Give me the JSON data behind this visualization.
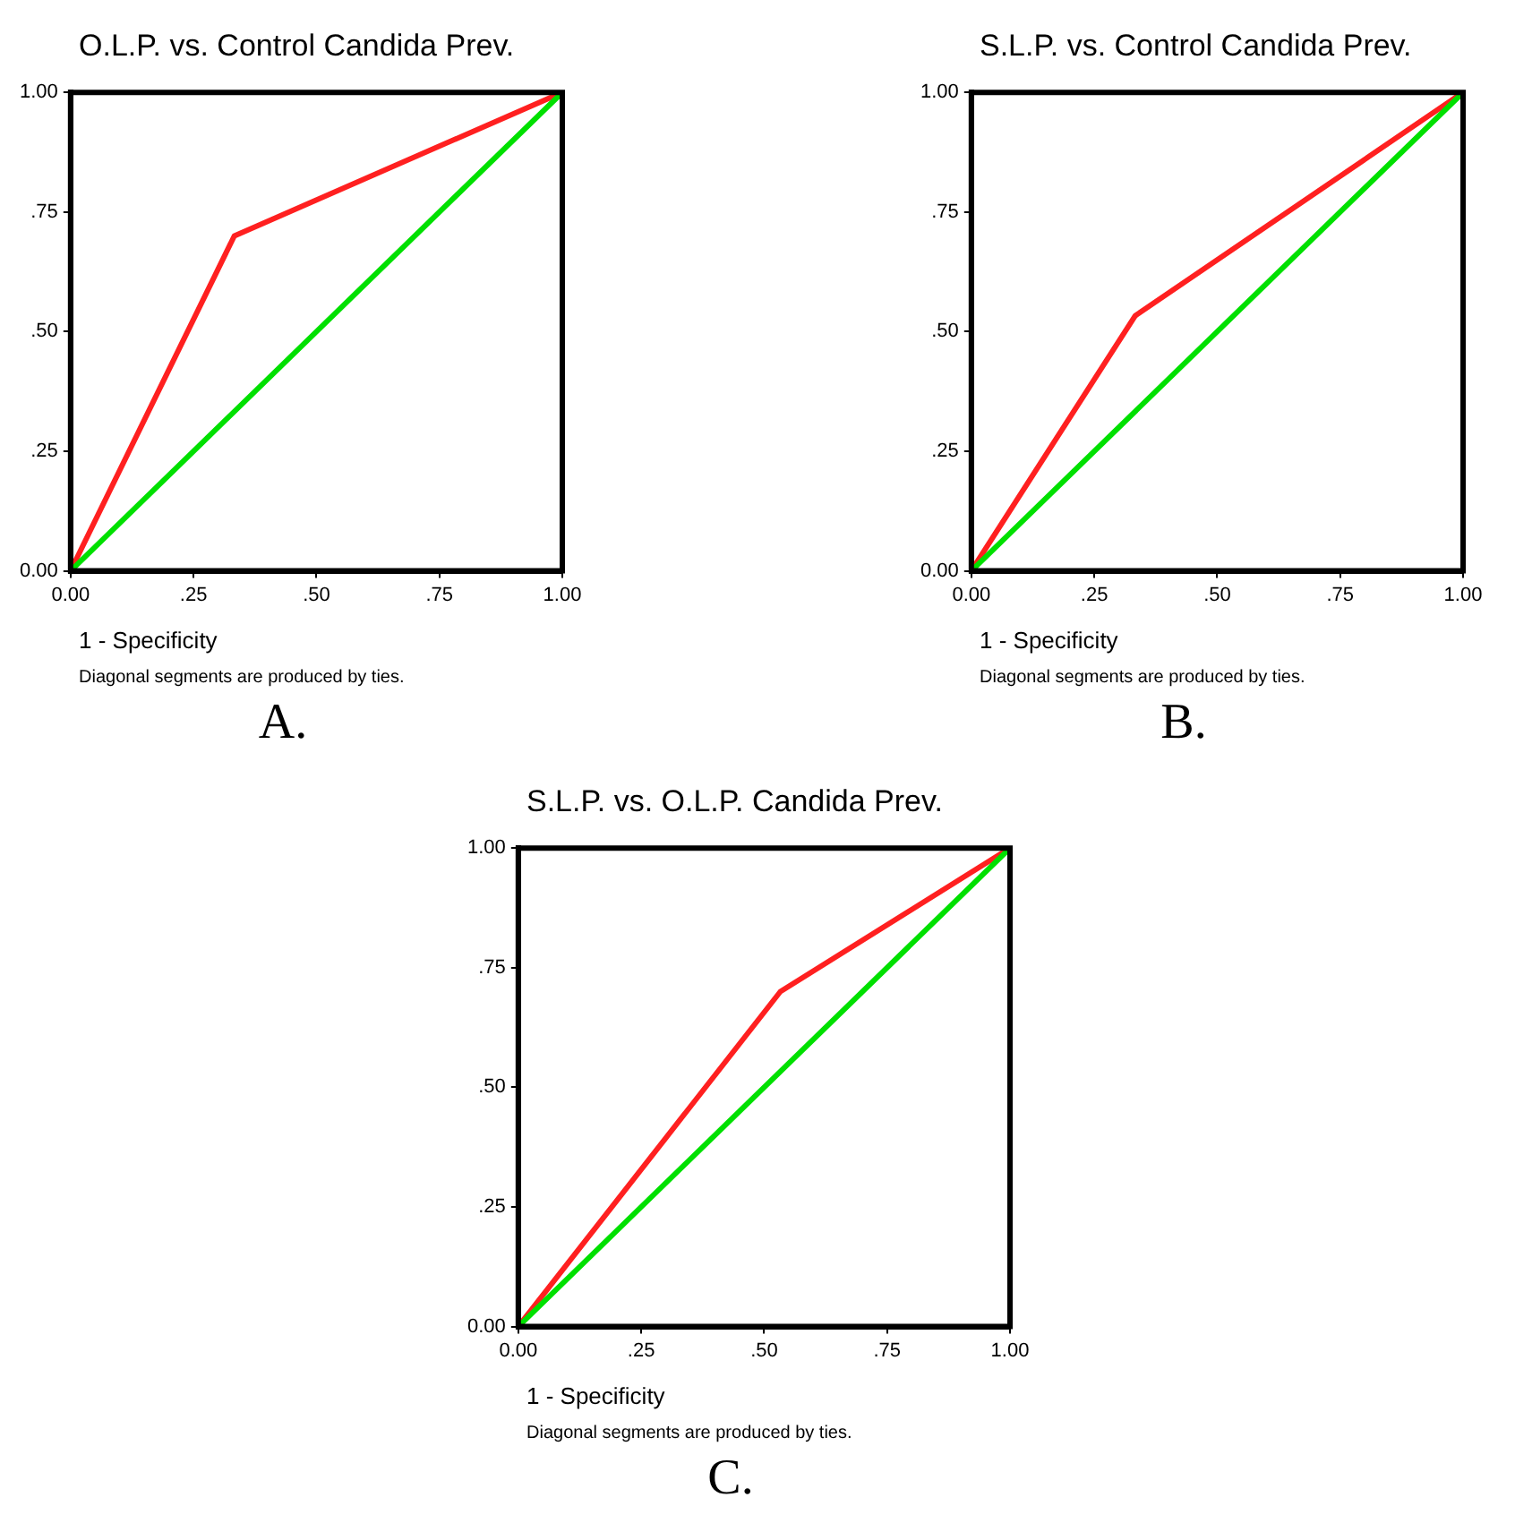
{
  "chart_data": [
    {
      "type": "line",
      "title": "O.L.P. vs. Control Candida Prev.",
      "xlabel": "1 - Specificity",
      "annotations": [
        "Diagonal segments are produced by ties.",
        "A."
      ],
      "xlim": [
        0,
        1
      ],
      "ylim": [
        0,
        1
      ],
      "xticks": [
        {
          "value": 0,
          "label": "0.00"
        },
        {
          "value": 0.25,
          "label": ".25"
        },
        {
          "value": 0.5,
          "label": ".50"
        },
        {
          "value": 0.75,
          "label": ".75"
        },
        {
          "value": 1,
          "label": "1.00"
        }
      ],
      "yticks": [
        {
          "value": 0,
          "label": "0.00"
        },
        {
          "value": 0.25,
          "label": ".25"
        },
        {
          "value": 0.5,
          "label": ".50"
        },
        {
          "value": 0.75,
          "label": ".75"
        },
        {
          "value": 1,
          "label": "1.00"
        }
      ],
      "grid": false,
      "legend": false,
      "marker": "none",
      "line_style": "solid",
      "series": [
        {
          "color": "#00e000",
          "x": [
            0,
            1
          ],
          "values": [
            0,
            1
          ]
        },
        {
          "color": "#ff2020",
          "x": [
            0,
            0.333,
            1
          ],
          "values": [
            0,
            0.7,
            1
          ]
        }
      ]
    },
    {
      "type": "line",
      "title": "S.L.P. vs. Control Candida Prev.",
      "xlabel": "1 - Specificity",
      "annotations": [
        "Diagonal segments are produced by ties.",
        "B."
      ],
      "xlim": [
        0,
        1
      ],
      "ylim": [
        0,
        1
      ],
      "xticks": [
        {
          "value": 0,
          "label": "0.00"
        },
        {
          "value": 0.25,
          "label": ".25"
        },
        {
          "value": 0.5,
          "label": ".50"
        },
        {
          "value": 0.75,
          "label": ".75"
        },
        {
          "value": 1,
          "label": "1.00"
        }
      ],
      "yticks": [
        {
          "value": 0,
          "label": "0.00"
        },
        {
          "value": 0.25,
          "label": ".25"
        },
        {
          "value": 0.5,
          "label": ".50"
        },
        {
          "value": 0.75,
          "label": ".75"
        },
        {
          "value": 1,
          "label": "1.00"
        }
      ],
      "grid": false,
      "legend": false,
      "marker": "none",
      "line_style": "solid",
      "series": [
        {
          "color": "#00e000",
          "x": [
            0,
            1
          ],
          "values": [
            0,
            1
          ]
        },
        {
          "color": "#ff2020",
          "x": [
            0,
            0.333,
            1
          ],
          "values": [
            0,
            0.533,
            1
          ]
        }
      ]
    },
    {
      "type": "line",
      "title": "S.L.P. vs. O.L.P. Candida Prev.",
      "xlabel": "1 - Specificity",
      "annotations": [
        "Diagonal segments are produced by ties.",
        "C."
      ],
      "xlim": [
        0,
        1
      ],
      "ylim": [
        0,
        1
      ],
      "xticks": [
        {
          "value": 0,
          "label": "0.00"
        },
        {
          "value": 0.25,
          "label": ".25"
        },
        {
          "value": 0.5,
          "label": ".50"
        },
        {
          "value": 0.75,
          "label": ".75"
        },
        {
          "value": 1,
          "label": "1.00"
        }
      ],
      "yticks": [
        {
          "value": 0,
          "label": "0.00"
        },
        {
          "value": 0.25,
          "label": ".25"
        },
        {
          "value": 0.5,
          "label": ".50"
        },
        {
          "value": 0.75,
          "label": ".75"
        },
        {
          "value": 1,
          "label": "1.00"
        }
      ],
      "grid": false,
      "legend": false,
      "marker": "none",
      "line_style": "solid",
      "series": [
        {
          "color": "#00e000",
          "x": [
            0,
            1
          ],
          "values": [
            0,
            1
          ]
        },
        {
          "color": "#ff2020",
          "x": [
            0,
            0.533,
            1
          ],
          "values": [
            0,
            0.7,
            1
          ]
        }
      ]
    }
  ]
}
